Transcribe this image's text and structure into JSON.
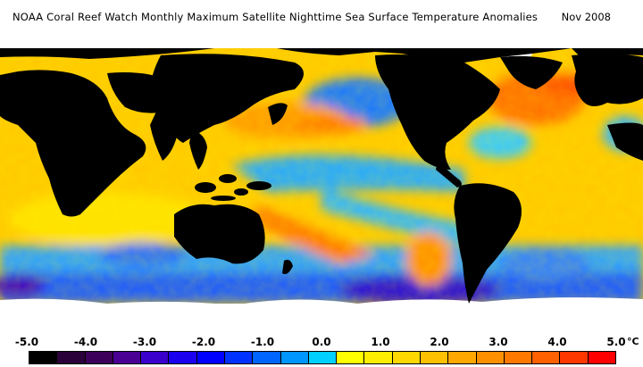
{
  "header": {
    "title": "NOAA Coral Reef Watch Monthly Maximum Satellite Nighttime Sea Surface Temperature Anomalies",
    "date": "Nov 2008"
  },
  "legend": {
    "tick_labels": [
      "-5.0",
      "-4.0",
      "-3.0",
      "-2.0",
      "-1.0",
      "0.0",
      "1.0",
      "2.0",
      "3.0",
      "4.0",
      "5.0"
    ],
    "unit": "°C",
    "colors": [
      "#000000",
      "#2a0038",
      "#3c005a",
      "#4b0094",
      "#3a00cc",
      "#1b00f0",
      "#0000ff",
      "#0032ff",
      "#0064ff",
      "#0096ff",
      "#00d0ff",
      "#ffff00",
      "#ffee00",
      "#ffd800",
      "#ffc000",
      "#ffa800",
      "#ff9000",
      "#ff7800",
      "#ff6000",
      "#ff3800",
      "#ff0000"
    ]
  },
  "map": {
    "land_color": "#000000",
    "ice_color": "#ffffff"
  }
}
